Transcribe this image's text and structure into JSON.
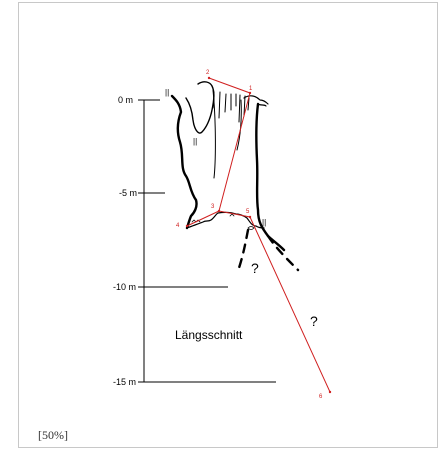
{
  "diagram": {
    "depth_axis": {
      "ticks": [
        {
          "label": "0 m",
          "value": 0
        },
        {
          "label": "-5 m",
          "value": -5
        },
        {
          "label": "-10 m",
          "value": -10
        },
        {
          "label": "-15 m",
          "value": -15
        }
      ]
    },
    "survey_stations": [
      "1",
      "2",
      "3",
      "4",
      "5",
      "6"
    ],
    "unknown_markers": [
      "?",
      "?"
    ],
    "section_label": "Längsschnitt",
    "wall_markers": [
      "||",
      "||",
      "||"
    ],
    "colors": {
      "survey_line": "#d02020",
      "cave_wall": "#000000",
      "frame_border": "#c8c8c8"
    }
  },
  "caption": {
    "scale": "[50%]"
  }
}
